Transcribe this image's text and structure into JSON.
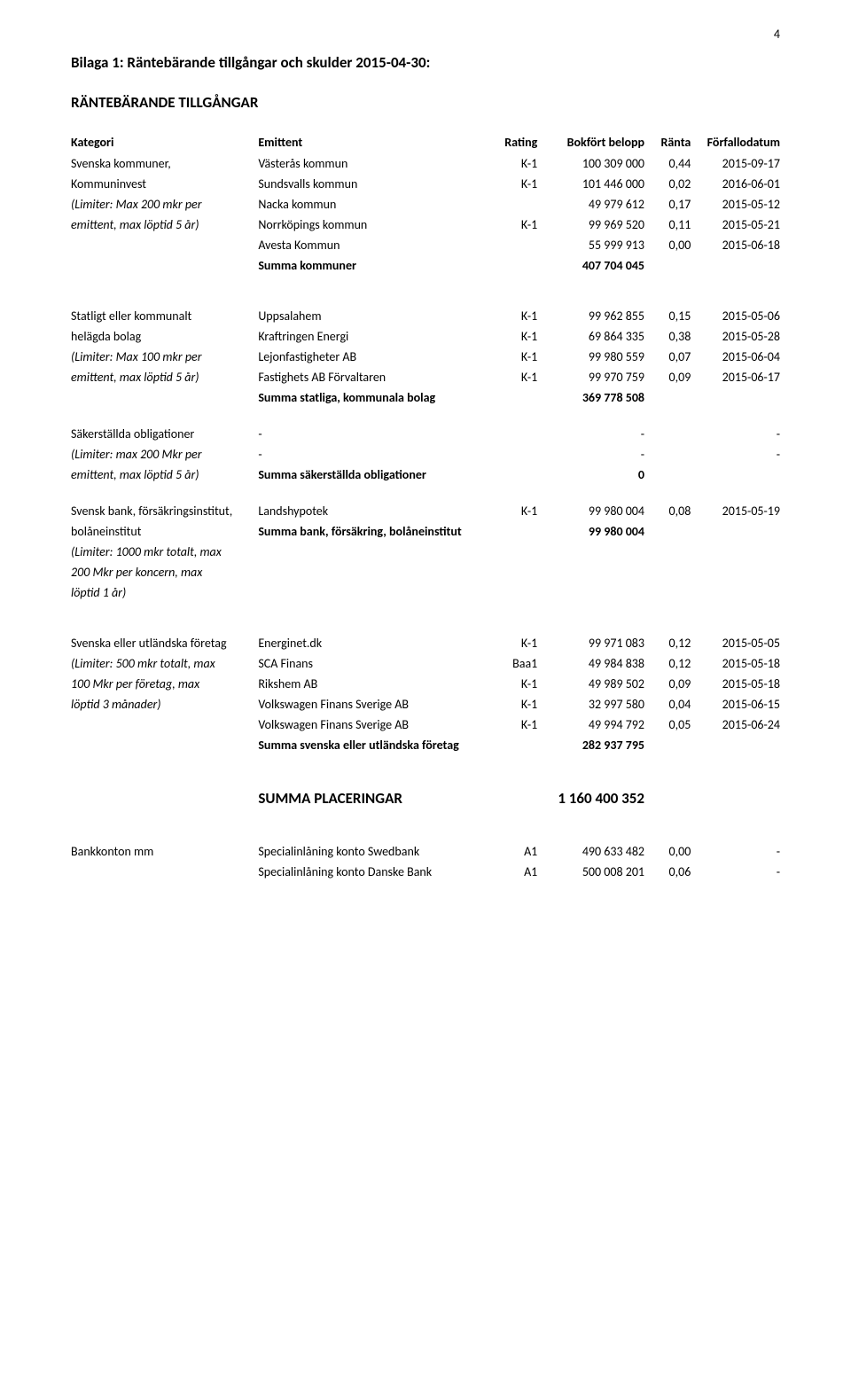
{
  "page_number": "4",
  "title": "Bilaga 1: Räntebärande tillgångar och skulder 2015-04-30:",
  "section": "RÄNTEBÄRANDE TILLGÅNGAR",
  "headers": {
    "kategori": "Kategori",
    "emittent": "Emittent",
    "rating": "Rating",
    "belopp": "Bokfört belopp",
    "ranta": "Ränta",
    "datum": "Förfallodatum"
  },
  "group1": {
    "kategori": [
      "Svenska kommuner,",
      "Kommuninvest",
      "(Limiter: Max 200 mkr per",
      "emittent, max löptid 5 år)"
    ],
    "rows": [
      {
        "emittent": "Västerås kommun",
        "rating": "K-1",
        "belopp": "100 309 000",
        "ranta": "0,44",
        "datum": "2015-09-17"
      },
      {
        "emittent": "Sundsvalls kommun",
        "rating": "K-1",
        "belopp": "101 446 000",
        "ranta": "0,02",
        "datum": "2016-06-01"
      },
      {
        "emittent": "Nacka kommun",
        "rating": "",
        "belopp": "49 979 612",
        "ranta": "0,17",
        "datum": "2015-05-12"
      },
      {
        "emittent": "Norrköpings kommun",
        "rating": "K-1",
        "belopp": "99 969 520",
        "ranta": "0,11",
        "datum": "2015-05-21"
      },
      {
        "emittent": "Avesta Kommun",
        "rating": "",
        "belopp": "55 999 913",
        "ranta": "0,00",
        "datum": "2015-06-18"
      }
    ],
    "summa_label": "Summa kommuner",
    "summa": "407 704 045"
  },
  "group2": {
    "kategori": [
      "Statligt eller kommunalt",
      "helägda bolag",
      "(Limiter: Max 100 mkr per",
      "emittent, max löptid 5 år)"
    ],
    "rows": [
      {
        "emittent": "Uppsalahem",
        "rating": "K-1",
        "belopp": "99 962 855",
        "ranta": "0,15",
        "datum": "2015-05-06"
      },
      {
        "emittent": "Kraftringen Energi",
        "rating": "K-1",
        "belopp": "69 864 335",
        "ranta": "0,38",
        "datum": "2015-05-28"
      },
      {
        "emittent": "Lejonfastigheter AB",
        "rating": "K-1",
        "belopp": "99 980 559",
        "ranta": "0,07",
        "datum": "2015-06-04"
      },
      {
        "emittent": "Fastighets AB Förvaltaren",
        "rating": "K-1",
        "belopp": "99 970 759",
        "ranta": "0,09",
        "datum": "2015-06-17"
      }
    ],
    "summa_label": "Summa statliga, kommunala bolag",
    "summa": "369 778 508"
  },
  "group3": {
    "kategori": [
      "Säkerställda obligationer",
      "(Limiter: max 200 Mkr per",
      "emittent, max löptid 5 år)"
    ],
    "rows": [
      {
        "emittent": "-",
        "rating": "",
        "belopp": "-",
        "ranta": "",
        "datum": "-"
      },
      {
        "emittent": "-",
        "rating": "",
        "belopp": "-",
        "ranta": "",
        "datum": "-"
      }
    ],
    "summa_label": "Summa säkerställda obligationer",
    "summa": "0"
  },
  "group4": {
    "kategori": [
      "Svensk bank, försäkringsinstitut,",
      "bolåneinstitut",
      "(Limiter: 1000 mkr totalt, max",
      "200 Mkr per koncern, max",
      "löptid 1 år)"
    ],
    "rows": [
      {
        "emittent": "Landshypotek",
        "rating": "K-1",
        "belopp": "99 980 004",
        "ranta": "0,08",
        "datum": "2015-05-19"
      }
    ],
    "summa_label": "Summa bank, försäkring, bolåneinstitut",
    "summa": "99 980 004"
  },
  "group5": {
    "kategori": [
      "Svenska eller utländska företag",
      "(Limiter: 500 mkr totalt, max",
      "100 Mkr per företag, max",
      "löptid 3 månader)"
    ],
    "rows": [
      {
        "emittent": "Energinet.dk",
        "rating": "K-1",
        "belopp": "99 971 083",
        "ranta": "0,12",
        "datum": "2015-05-05"
      },
      {
        "emittent": "SCA Finans",
        "rating": "Baa1",
        "belopp": "49 984 838",
        "ranta": "0,12",
        "datum": "2015-05-18"
      },
      {
        "emittent": "Rikshem AB",
        "rating": "K-1",
        "belopp": "49 989 502",
        "ranta": "0,09",
        "datum": "2015-05-18"
      },
      {
        "emittent": "Volkswagen Finans Sverige AB",
        "rating": "K-1",
        "belopp": "32 997 580",
        "ranta": "0,04",
        "datum": "2015-06-15"
      },
      {
        "emittent": "Volkswagen Finans Sverige AB",
        "rating": "K-1",
        "belopp": "49 994 792",
        "ranta": "0,05",
        "datum": "2015-06-24"
      }
    ],
    "summa_label": "Summa svenska eller utländska företag",
    "summa": "282 937 795"
  },
  "total_label": "SUMMA PLACERINGAR",
  "total": "1 160 400 352",
  "group6": {
    "kategori": [
      "Bankkonton mm"
    ],
    "rows": [
      {
        "emittent": "Specialinlåning konto Swedbank",
        "rating": "A1",
        "belopp": "490 633 482",
        "ranta": "0,00",
        "datum": "-"
      },
      {
        "emittent": "Specialinlåning konto Danske Bank",
        "rating": "A1",
        "belopp": "500 008 201",
        "ranta": "0,06",
        "datum": "-"
      }
    ]
  }
}
